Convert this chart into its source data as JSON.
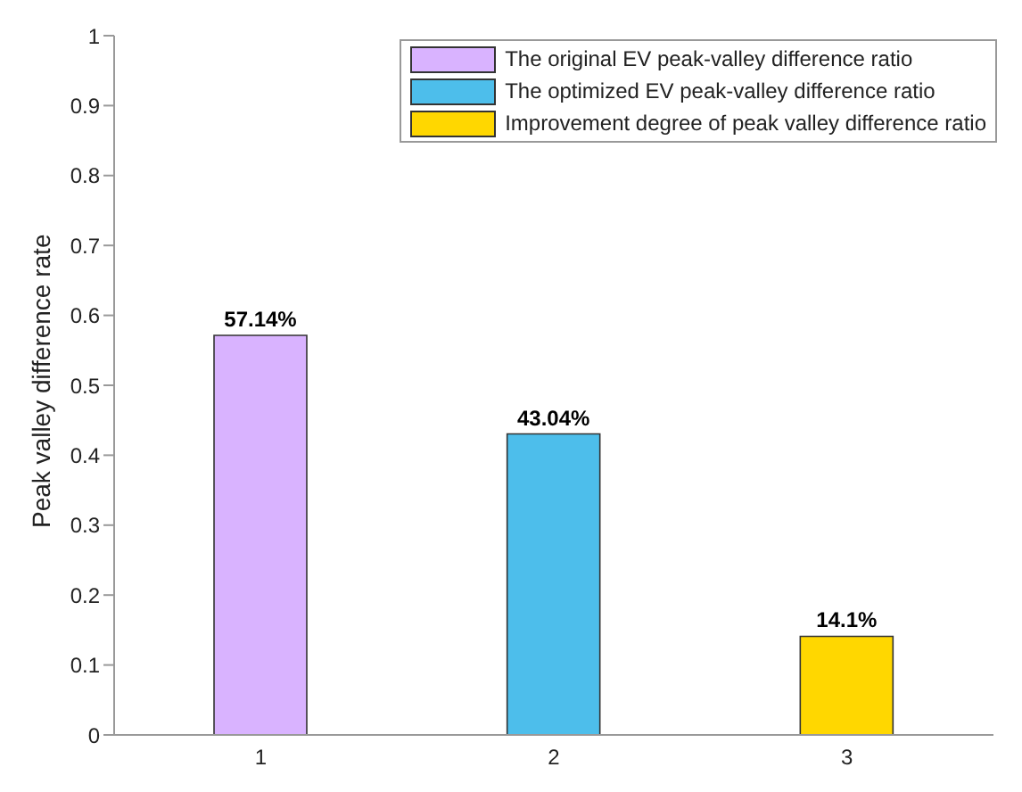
{
  "chart_data": {
    "type": "bar",
    "ylabel": "Peak valley difference rate",
    "categories": [
      "1",
      "2",
      "3"
    ],
    "series": [
      {
        "name": "The original EV peak-valley difference ratio",
        "color": "#d9b3ff",
        "values": [
          0.5714,
          null,
          null
        ],
        "value_labels": [
          "57.14%",
          null,
          null
        ]
      },
      {
        "name": "The optimized EV peak-valley difference ratio",
        "color": "#4dbeeb",
        "values": [
          null,
          0.4304,
          null
        ],
        "value_labels": [
          null,
          "43.04%",
          null
        ]
      },
      {
        "name": "Improvement degree of peak valley difference ratio",
        "color": "#ffd700",
        "values": [
          null,
          null,
          0.141
        ],
        "value_labels": [
          null,
          null,
          "14.1%"
        ]
      }
    ],
    "ylim": [
      0,
      1
    ],
    "yticks": [
      0,
      0.1,
      0.2,
      0.3,
      0.4,
      0.5,
      0.6,
      0.7,
      0.8,
      0.9,
      1
    ],
    "grid": false,
    "legend": "top right"
  }
}
